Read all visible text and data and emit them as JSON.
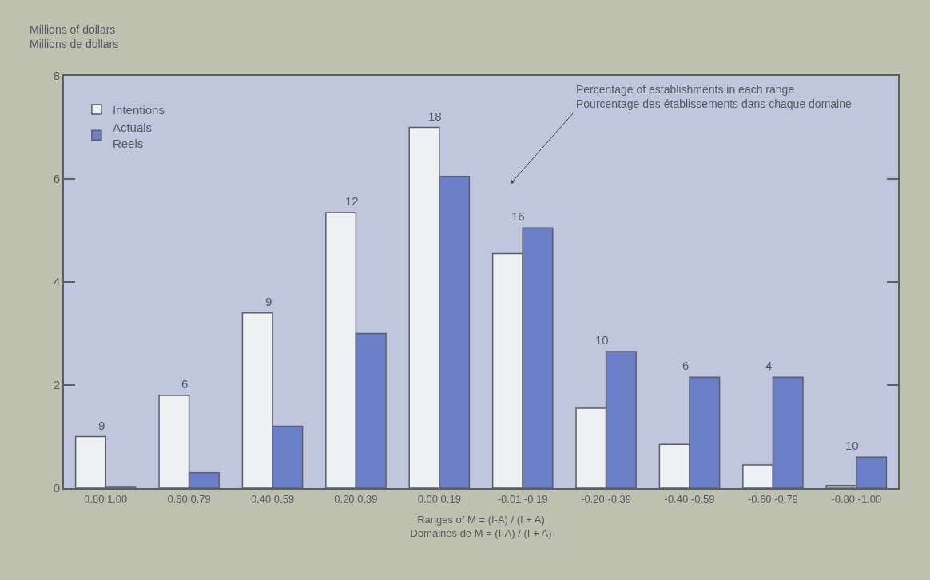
{
  "chart_data": {
    "type": "bar",
    "ylabel": "Millions of dollars\nMillions de dollars",
    "xlabel": "Ranges of M = (I-A) / (I + A)\nDomaines de M = (I-A) / (I + A)",
    "categories": [
      "0.80 1.00",
      "0.60 0.79",
      "0.40 0.59",
      "0.20 0.39",
      "0.00 0.19",
      "-0.01 -0.19",
      "-0.20 -0.39",
      "-0.40 -0.59",
      "-0.60 -0.79",
      "-0.80 -1.00"
    ],
    "series": [
      {
        "name": "Intentions",
        "color": "#eef0f4",
        "values": [
          1.0,
          1.8,
          3.4,
          5.35,
          7.0,
          4.55,
          1.55,
          0.85,
          0.45,
          0.05
        ]
      },
      {
        "name": "Actuals\nReels",
        "color": "#6b7fc8",
        "values": [
          0.03,
          0.3,
          1.2,
          3.0,
          6.05,
          5.05,
          2.65,
          2.15,
          2.15,
          0.6
        ]
      }
    ],
    "ylim": [
      0,
      8
    ],
    "yticks": [
      0,
      2,
      4,
      6,
      8
    ],
    "grid": false,
    "legend": "top left",
    "annotations": [
      {
        "text": "9",
        "x": "0.80 1.00",
        "y": 1.0
      },
      {
        "text": "6",
        "x": "0.60 0.79",
        "y": 1.8
      },
      {
        "text": "9",
        "x": "0.40 0.59",
        "y": 3.4
      },
      {
        "text": "12",
        "x": "0.20 0.39",
        "y": 5.35
      },
      {
        "text": "18",
        "x": "0.00 0.19",
        "y": 7.0
      },
      {
        "text": "16",
        "x": "-0.01 -0.19",
        "y": 5.05
      },
      {
        "text": "10",
        "x": "-0.20 -0.39",
        "y": 2.65
      },
      {
        "text": "6",
        "x": "-0.40 -0.59",
        "y": 2.15
      },
      {
        "text": "4",
        "x": "-0.60 -0.79",
        "y": 2.15
      },
      {
        "text": "10",
        "x": "-0.80 -1.00",
        "y": 0.6
      },
      "Percentage of establishments in each range\nPourcentage des établissements dans chaque domaine"
    ]
  }
}
